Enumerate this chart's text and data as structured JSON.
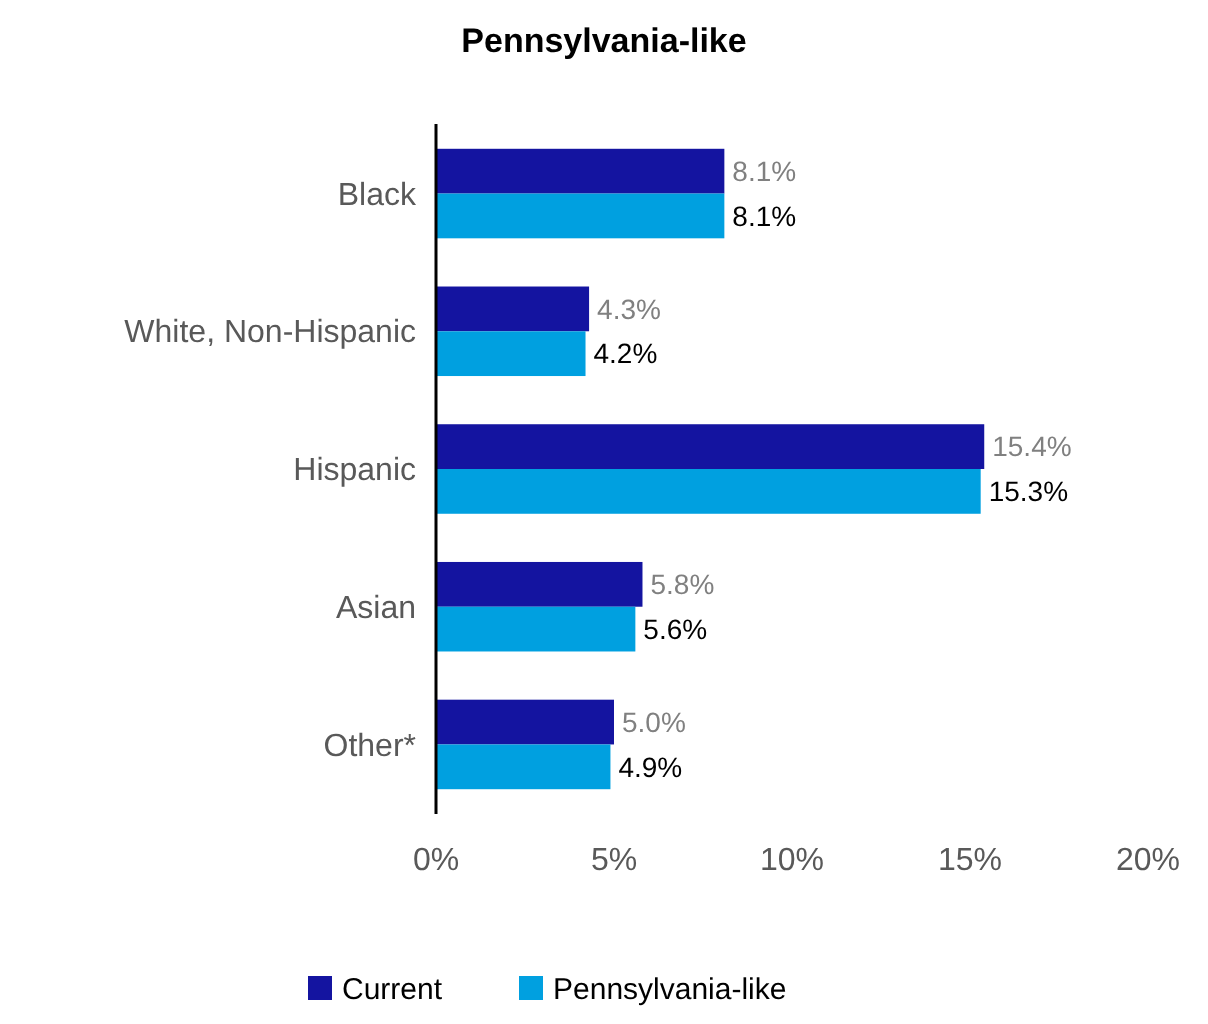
{
  "chart_data": {
    "type": "bar",
    "orientation": "horizontal",
    "title": "Pennsylvania-like",
    "categories": [
      "Black",
      "White, Non-Hispanic",
      "Hispanic",
      "Asian",
      "Other*"
    ],
    "series": [
      {
        "name": "Current",
        "color": "#1414a0",
        "values": [
          8.1,
          4.3,
          15.4,
          5.8,
          5.0
        ],
        "value_labels": [
          "8.1%",
          "4.3%",
          "15.4%",
          "5.8%",
          "5.0%"
        ]
      },
      {
        "name": "Pennsylvania-like",
        "color": "#00a0e0",
        "values": [
          8.1,
          4.2,
          15.3,
          5.6,
          4.9
        ],
        "value_labels": [
          "8.1%",
          "4.2%",
          "15.3%",
          "5.6%",
          "4.9%"
        ]
      }
    ],
    "xlim": [
      0,
      20
    ],
    "xticks": [
      {
        "value": 0,
        "label": "0%"
      },
      {
        "value": 5,
        "label": "5%"
      },
      {
        "value": 10,
        "label": "10%"
      },
      {
        "value": 15,
        "label": "15%"
      },
      {
        "value": 20,
        "label": "20%"
      }
    ],
    "grid": false,
    "legend": "bottom"
  }
}
